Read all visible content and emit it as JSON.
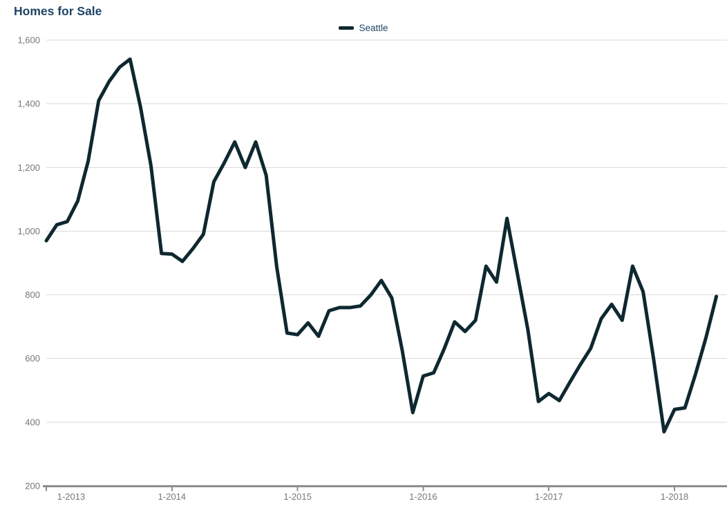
{
  "page": {
    "title": "Homes for Sale"
  },
  "colors": {
    "background": "#FFFFFF",
    "title_text": "#1E4466",
    "legend_text": "#1E4466",
    "axis_text": "#767676",
    "gridline": "#D9D9D9",
    "axis_line": "#8C8C8C",
    "series": "#0E2830"
  },
  "legend": {
    "items": [
      {
        "label": "Seattle",
        "color": "#0E2830"
      }
    ]
  },
  "chart_data": {
    "type": "line",
    "title": "Homes for Sale",
    "xlabel": "",
    "ylabel": "",
    "grid": "horizontal-only",
    "legend_position": "top-center",
    "ylim": [
      200,
      1600
    ],
    "y_ticks": [
      200,
      400,
      600,
      800,
      1000,
      1200,
      1400,
      1600
    ],
    "y_tick_labels": [
      "200",
      "400",
      "600",
      "800",
      "1,000",
      "1,200",
      "1,400",
      "1,600"
    ],
    "x_tick_labels": [
      "1-2013",
      "1-2014",
      "1-2015",
      "1-2016",
      "1-2017",
      "1-2018"
    ],
    "x": [
      "1-2013",
      "2-2013",
      "3-2013",
      "4-2013",
      "5-2013",
      "6-2013",
      "7-2013",
      "8-2013",
      "9-2013",
      "10-2013",
      "11-2013",
      "12-2013",
      "1-2014",
      "2-2014",
      "3-2014",
      "4-2014",
      "5-2014",
      "6-2014",
      "7-2014",
      "8-2014",
      "9-2014",
      "10-2014",
      "11-2014",
      "12-2014",
      "1-2015",
      "2-2015",
      "3-2015",
      "4-2015",
      "5-2015",
      "6-2015",
      "7-2015",
      "8-2015",
      "9-2015",
      "10-2015",
      "11-2015",
      "12-2015",
      "1-2016",
      "2-2016",
      "3-2016",
      "4-2016",
      "5-2016",
      "6-2016",
      "7-2016",
      "8-2016",
      "9-2016",
      "10-2016",
      "11-2016",
      "12-2016",
      "1-2017",
      "2-2017",
      "3-2017",
      "4-2017",
      "5-2017",
      "6-2017",
      "7-2017",
      "8-2017",
      "9-2017",
      "10-2017",
      "11-2017",
      "12-2017",
      "1-2018",
      "2-2018",
      "3-2018",
      "4-2018",
      "5-2018"
    ],
    "series": [
      {
        "name": "Seattle",
        "values": [
          970,
          1020,
          1030,
          1095,
          1220,
          1410,
          1470,
          1515,
          1540,
          1390,
          1205,
          930,
          928,
          905,
          945,
          990,
          1155,
          1215,
          1280,
          1200,
          1280,
          1175,
          890,
          680,
          675,
          712,
          670,
          750,
          760,
          760,
          765,
          800,
          845,
          790,
          625,
          430,
          545,
          555,
          630,
          715,
          685,
          720,
          890,
          840,
          1040,
          865,
          690,
          465,
          490,
          468,
          525,
          580,
          632,
          725,
          770,
          720,
          890,
          810,
          600,
          370,
          440,
          445,
          550,
          665,
          795
        ]
      }
    ]
  }
}
